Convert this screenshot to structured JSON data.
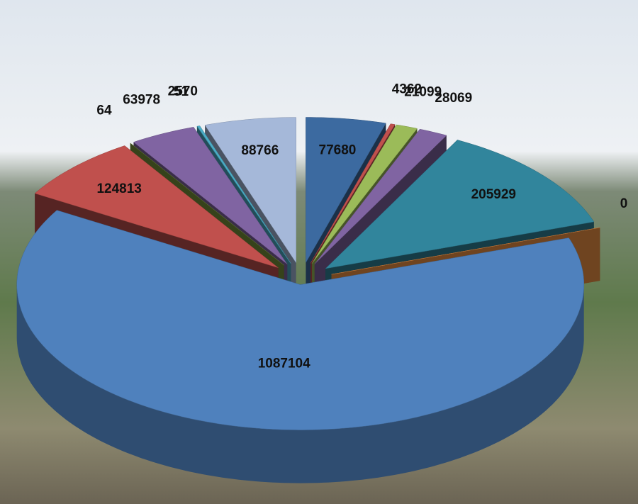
{
  "chart_data": {
    "type": "pie3d",
    "values": [
      77680,
      4362,
      21099,
      28069,
      205929,
      0,
      1087104,
      124813,
      64,
      63978,
      51,
      2570,
      88766
    ],
    "colors": [
      "#3c6aa0",
      "#c0504d",
      "#9bbb59",
      "#8064a2",
      "#31859c",
      "#f79646",
      "#4f81bd",
      "#c0504d",
      "#77933c",
      "#8064a2",
      "#4bacc6",
      "#4bacc6",
      "#a5b8d9"
    ]
  }
}
